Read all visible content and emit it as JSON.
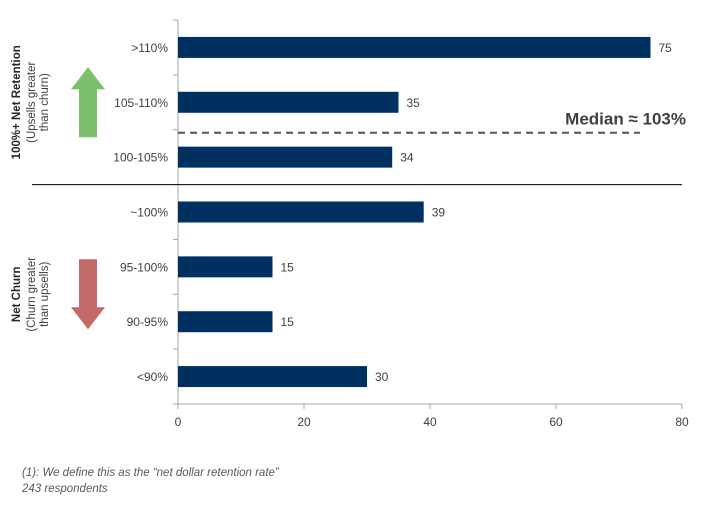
{
  "chart_data": {
    "type": "bar",
    "orientation": "horizontal",
    "categories": [
      ">110%",
      "105-110%",
      "100-105%",
      "~100%",
      "95-100%",
      "90-95%",
      "<90%"
    ],
    "values": [
      75,
      35,
      34,
      39,
      15,
      15,
      30
    ],
    "xlim": [
      0,
      80
    ],
    "xticks": [
      0,
      20,
      40,
      60,
      80
    ],
    "grid": false,
    "bar_color": "#00305f",
    "annotations": {
      "median": "Median ≈ 103%"
    },
    "groups": [
      {
        "title": "100%+ Net Retention",
        "subtitle_lines": [
          "(Upsells greater",
          "than churn)"
        ],
        "arrow": "up",
        "arrow_color": "#7cbf6e",
        "categories": [
          ">110%",
          "105-110%",
          "100-105%"
        ]
      },
      {
        "title": "Net Churn",
        "subtitle_lines": [
          "(Churn greater",
          "than upsells)"
        ],
        "arrow": "down",
        "arrow_color": "#c26a6a",
        "categories": [
          "~100%",
          "95-100%",
          "90-95%",
          "<90%"
        ]
      }
    ]
  },
  "footnotes": [
    "(1): We define this as the “net dollar retention rate”",
    "243 respondents"
  ]
}
